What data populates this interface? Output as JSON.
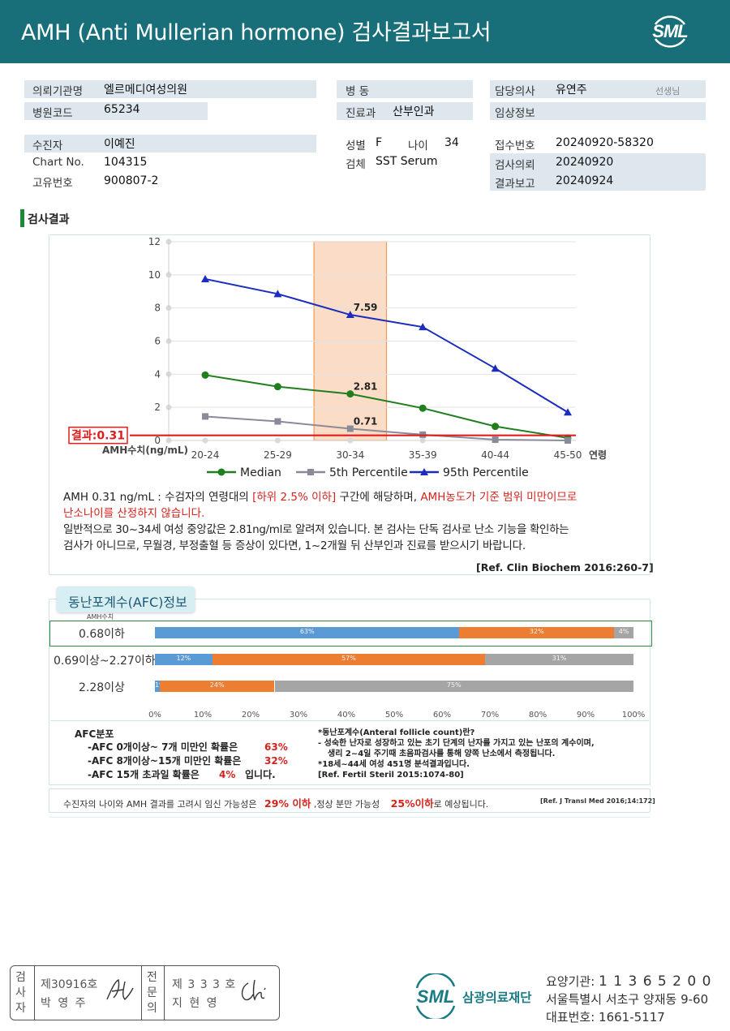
{
  "header": {
    "title": "AMH (Anti Mullerian hormone) 검사결과보고서",
    "logo": "SML"
  },
  "info": {
    "institution_label": "의뢰기관명",
    "institution": "엘르메디여성의원",
    "hospital_code_label": "병원코드",
    "hospital_code": "65234",
    "ward_label": "병 동",
    "ward": "",
    "department_label": "진료과",
    "department": "산부인과",
    "doctor_label": "담당의사",
    "doctor": "유연주",
    "doctor_suffix": "선생님",
    "clinical_label": "임상정보",
    "clinical": "",
    "patient_label": "수진자",
    "patient": "이예진",
    "chart_label": "Chart No.",
    "chart": "104315",
    "id_label": "고유번호",
    "id": "900807-2",
    "sex_label": "성별",
    "sex": "F",
    "age_label": "나이",
    "age": "34",
    "specimen_label": "검체",
    "specimen": "SST Serum",
    "receipt_label": "접수번호",
    "receipt": "20240920-58320",
    "request_label": "검사의뢰",
    "request": "20240920",
    "report_label": "결과보고",
    "report": "20240924"
  },
  "section_title": "검사결과",
  "chart_data": {
    "type": "line",
    "categories": [
      "20-24",
      "25-29",
      "30-34",
      "35-39",
      "40-44",
      "45-50"
    ],
    "x_axis_end_label": "연령",
    "y_axis_label": "AMH수치(ng/mL)",
    "ylim": [
      0,
      12
    ],
    "yticks": [
      0,
      2,
      4,
      6,
      8,
      10,
      12
    ],
    "highlight_category": "30-34",
    "result_label": "결과:0.31",
    "result_value": 0.31,
    "series": [
      {
        "name": "Median",
        "color": "#1f7f1f",
        "marker": "circle",
        "values": [
          3.95,
          3.25,
          2.81,
          1.95,
          0.85,
          0.15
        ]
      },
      {
        "name": "5th Percentile",
        "color": "#8a8a99",
        "marker": "square",
        "values": [
          1.45,
          1.15,
          0.71,
          0.35,
          0.05,
          0.0
        ]
      },
      {
        "name": "95th Percentile",
        "color": "#1a2dbf",
        "marker": "triangle",
        "values": [
          9.75,
          8.85,
          7.59,
          6.85,
          4.35,
          1.7
        ]
      }
    ],
    "data_labels": [
      {
        "series": 2,
        "index": 2,
        "text": "7.59"
      },
      {
        "series": 0,
        "index": 2,
        "text": "2.81"
      },
      {
        "series": 1,
        "index": 2,
        "text": "0.71"
      }
    ],
    "grid": true,
    "legend": "bottom"
  },
  "interpretation": {
    "line1_a": "AMH 0.31 ng/mL : 수검자의 연령대의 ",
    "line1_b": "[하위 2.5% 이하]",
    "line1_c": " 구간에 해당하며, ",
    "line1_d": "AMH농도가 기준 범위 미만이므로",
    "line2": "난소나이를 산정하지 않습니다.",
    "line3": "일반적으로 30~34세 여성 중앙값은 2.81ng/ml로 알려져 있습니다. 본 검사는 단독 검사로 난소 기능을 확인하는",
    "line4": "검사가 아니므로, 무월경, 부정출혈 등 증상이 있다면, 1~2개월 뒤 산부인과 진료를 받으시기 바랍니다.",
    "ref": "[Ref. Clin Biochem 2016:260-7]"
  },
  "afc": {
    "tab": "동난포계수(AFC)정보",
    "amh_col": "AMH수치",
    "colors": {
      "low": "#5b9bd5",
      "mid": "#ed7d31",
      "high": "#a5a5a5"
    },
    "rows": [
      {
        "label": "0.68이하",
        "values": [
          63,
          32,
          4
        ],
        "texts": [
          "63%",
          "32%",
          "4%"
        ],
        "highlight": true
      },
      {
        "label": "0.69이상~2.27이하",
        "values": [
          12,
          57,
          31
        ],
        "texts": [
          "12%",
          "57%",
          "31%"
        ],
        "highlight": false
      },
      {
        "label": "2.28이상",
        "values": [
          1,
          24,
          75
        ],
        "texts": [
          "1%",
          "24%",
          "75%"
        ],
        "highlight": false
      }
    ],
    "axis_ticks": [
      "0%",
      "10%",
      "20%",
      "30%",
      "40%",
      "50%",
      "60%",
      "70%",
      "80%",
      "90%",
      "100%"
    ],
    "dist_title": "AFC분포",
    "dist_rows": [
      {
        "text": "-AFC 0개이상~ 7개 미만인 확률은",
        "value": "63%",
        "suffix": ""
      },
      {
        "text": "-AFC 8개이상~15개 미만인 확률은",
        "value": "32%",
        "suffix": ""
      },
      {
        "text": "-AFC 15개 초과일 확률은",
        "value": "4%",
        "suffix": "입니다."
      }
    ],
    "note1": "*동난포계수(Anteral follicle count)란?",
    "note2": "- 성숙한 난자로 성장하고 있는 초기 단계의 난자를 가지고 있는 난포의 계수이며,",
    "note3": "생리 2~4일 주기때 초음파검사를 통해 양쪽 난소에서 측정됩니다.",
    "note4": "*18세~44세 여성 451명 분석결과입니다.",
    "note5": "[Ref. Fertil Steril 2015:1074-80]"
  },
  "pregnancy": {
    "text_a": "수진자의 나이와 AMH 결과를 고려시 임신 가능성은",
    "value_a": "29% 이하",
    "text_b": ",정상 분만 가능성",
    "value_b": "25%이하",
    "text_c": "로 예상됩니다.",
    "ref": "[Ref. J Transl Med 2016;14:172]"
  },
  "footer": {
    "stamp1_label": "검사자",
    "stamp1_no": "제30916호",
    "stamp1_name": "박 영 주",
    "stamp2_label": "전문의",
    "stamp2_no": "제 3 3 3 호",
    "stamp2_name": "지 현 영",
    "org_logo": "SML",
    "org_name": "삼광의료재단",
    "code_label": "요양기관:",
    "code": "1 1 3 6 5 2 0 0",
    "address": "서울특별시 서초구 양재동 9-60",
    "phone_label": "대표번호:",
    "phone": "1661-5117"
  }
}
